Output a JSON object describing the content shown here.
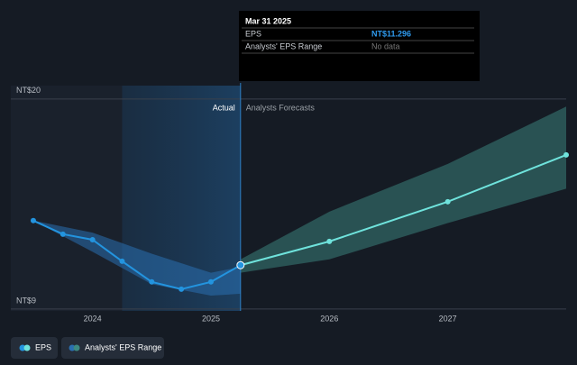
{
  "chart_data": {
    "type": "line",
    "xlim": [
      2023.31,
      2028.0
    ],
    "xticks": [
      2024,
      2025,
      2026,
      2027
    ],
    "ylim": [
      8.9,
      20.7
    ],
    "yticks": [
      {
        "value": 9,
        "label": "NT$9"
      },
      {
        "value": 20,
        "label": "NT$20"
      }
    ],
    "grid": true,
    "annotations": {
      "actual": "Actual",
      "forecast": "Analysts Forecasts"
    },
    "series": [
      {
        "name": "EPS",
        "color": "#2394df",
        "x": [
          2023.5,
          2023.75,
          2024.0,
          2024.25,
          2024.5,
          2024.75,
          2025.0,
          2025.25
        ],
        "values": [
          13.63,
          12.92,
          12.63,
          11.5,
          10.42,
          10.04,
          10.42,
          11.296
        ]
      }
    ],
    "forecast": {
      "color": "#6fe3dc",
      "x": [
        2026.0,
        2027.0,
        2028.0
      ],
      "values": [
        12.54,
        14.62,
        17.07
      ]
    },
    "range": {
      "name": "Analysts' EPS Range",
      "color": "#2a6fb0",
      "forecast_color": "#3d8a82",
      "past": {
        "x": [
          2023.5,
          2024.0,
          2024.5,
          2025.0,
          2025.25
        ],
        "low": [
          13.63,
          12.0,
          10.3,
          9.7,
          9.8
        ],
        "high": [
          13.63,
          13.0,
          11.9,
          10.9,
          11.2
        ]
      },
      "future": {
        "x": [
          2025.25,
          2026.0,
          2027.0,
          2028.0
        ],
        "low": [
          10.9,
          11.6,
          13.5,
          15.3
        ],
        "high": [
          11.6,
          14.1,
          16.6,
          19.6
        ]
      }
    },
    "tooltip": {
      "date": "Mar 31 2025",
      "rows": [
        {
          "label": "EPS",
          "value": "NT$11.296"
        },
        {
          "label": "Analysts' EPS Range",
          "value": "No data"
        }
      ]
    }
  }
}
